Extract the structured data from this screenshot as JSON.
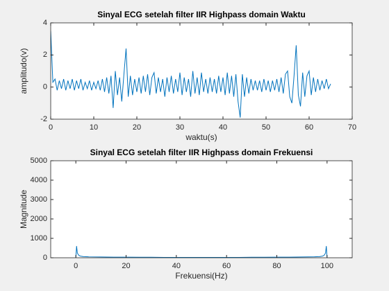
{
  "chart_data": [
    {
      "type": "line",
      "title": "Sinyal ECG setelah filter IIR Highpass domain Waktu",
      "xlabel": "waktu(s)",
      "ylabel": "amplitudo(v)",
      "color": "#0072bd",
      "xlim": [
        0,
        70
      ],
      "xticks": [
        0,
        10,
        20,
        30,
        40,
        50,
        60,
        70
      ],
      "ylim": [
        -2,
        4
      ],
      "yticks": [
        -2,
        0,
        2,
        4
      ],
      "x": [
        0,
        0.5,
        1,
        1.5,
        2,
        2.5,
        3,
        3.5,
        4,
        4.5,
        5,
        5.5,
        6,
        6.5,
        7,
        7.5,
        8,
        8.5,
        9,
        9.5,
        10,
        10.5,
        11,
        11.5,
        12,
        12.5,
        13,
        13.5,
        14,
        14.5,
        15,
        15.5,
        16,
        16.5,
        17,
        17.5,
        18,
        18.5,
        19,
        19.5,
        20,
        20.5,
        21,
        21.5,
        22,
        22.5,
        23,
        23.5,
        24,
        24.5,
        25,
        25.5,
        26,
        26.5,
        27,
        27.5,
        28,
        28.5,
        29,
        29.5,
        30,
        30.5,
        31,
        31.5,
        32,
        32.5,
        33,
        33.5,
        34,
        34.5,
        35,
        35.5,
        36,
        36.5,
        37,
        37.5,
        38,
        38.5,
        39,
        39.5,
        40,
        40.5,
        41,
        41.5,
        42,
        42.5,
        43,
        43.5,
        44,
        44.5,
        45,
        45.5,
        46,
        46.5,
        47,
        47.5,
        48,
        48.5,
        49,
        49.5,
        50,
        50.5,
        51,
        51.5,
        52,
        52.5,
        53,
        53.5,
        54,
        54.5,
        55,
        55.5,
        56,
        56.5,
        57,
        57.5,
        58,
        58.5,
        59,
        59.5,
        60,
        60.5,
        61,
        61.5,
        62,
        62.5,
        63,
        63.5,
        64,
        64.5,
        65
      ],
      "values": [
        3.5,
        0.3,
        0.5,
        -0.2,
        0.4,
        -0.1,
        0.5,
        -0.2,
        0.4,
        -0.1,
        0.5,
        -0.2,
        0.4,
        -0.1,
        0.5,
        -0.2,
        0.3,
        -0.1,
        0.4,
        -0.2,
        0.3,
        -0.1,
        0.4,
        -0.2,
        0.5,
        -0.3,
        0.6,
        -0.4,
        0.7,
        -1.3,
        1.0,
        -0.5,
        0.6,
        -0.9,
        0.8,
        2.4,
        -0.6,
        0.7,
        -0.5,
        0.5,
        -0.3,
        0.6,
        -0.4,
        0.7,
        -0.3,
        0.8,
        -0.5,
        0.6,
        0.9,
        -0.4,
        0.6,
        -0.3,
        0.5,
        -0.6,
        0.6,
        -0.3,
        0.7,
        -0.4,
        0.5,
        -0.3,
        0.9,
        -0.5,
        0.6,
        -0.3,
        0.5,
        -0.6,
        1.0,
        -0.4,
        0.6,
        -0.5,
        0.9,
        -0.3,
        0.5,
        -0.4,
        0.6,
        -0.3,
        0.5,
        -0.4,
        0.7,
        -0.3,
        0.6,
        -0.5,
        0.9,
        -0.4,
        0.7,
        -0.6,
        0.8,
        -0.9,
        -1.9,
        0.8,
        -0.6,
        0.6,
        -0.4,
        0.5,
        -0.2,
        0.4,
        -0.2,
        0.4,
        -0.3,
        0.5,
        -0.2,
        0.4,
        -0.3,
        0.4,
        -0.2,
        0.5,
        -0.3,
        0.6,
        -0.4,
        0.8,
        1.0,
        -0.6,
        -1.0,
        0.7,
        2.6,
        -0.5,
        -1.2,
        0.9,
        -0.6,
        0.7,
        1.0,
        -0.5,
        0.6,
        -0.3,
        0.5,
        -0.2,
        0.4,
        -0.1,
        0.5,
        -0.1,
        0.2
      ]
    },
    {
      "type": "line",
      "title": "Sinyal ECG setelah filter IIR Highpass domain Frekuensi",
      "xlabel": "Frekuensi(Hz)",
      "ylabel": "Magnitude",
      "color": "#0072bd",
      "xlim": [
        -10,
        110
      ],
      "xticks": [
        0,
        20,
        40,
        60,
        80,
        100
      ],
      "ylim": [
        0,
        5000
      ],
      "yticks": [
        0,
        1000,
        2000,
        3000,
        4000,
        5000
      ],
      "x": [
        0,
        0.3,
        0.6,
        1,
        1.5,
        2,
        3,
        5,
        10,
        15,
        20,
        25,
        30,
        35,
        40,
        45,
        50,
        55,
        60,
        65,
        70,
        75,
        80,
        85,
        90,
        95,
        97,
        98,
        98.5,
        99,
        99.4,
        99.7,
        100
      ],
      "values": [
        0,
        600,
        250,
        150,
        100,
        80,
        60,
        50,
        40,
        30,
        30,
        25,
        25,
        20,
        20,
        20,
        20,
        20,
        20,
        20,
        25,
        25,
        30,
        30,
        40,
        50,
        60,
        80,
        100,
        150,
        250,
        600,
        0
      ]
    }
  ]
}
